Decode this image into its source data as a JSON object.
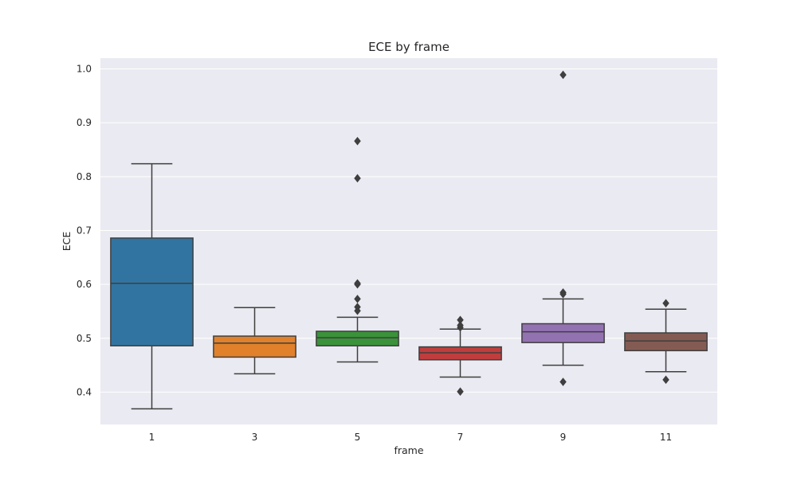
{
  "chart_data": {
    "type": "box",
    "title": "ECE by frame",
    "xlabel": "frame",
    "ylabel": "ECE",
    "ylim": [
      0.34,
      1.02
    ],
    "yticks": [
      0.4,
      0.5,
      0.6,
      0.7,
      0.8,
      0.9,
      1.0
    ],
    "ytick_labels": [
      "0.4",
      "0.5",
      "0.6",
      "0.7",
      "0.8",
      "0.9",
      "1.0"
    ],
    "grid": true,
    "categories": [
      "1",
      "3",
      "5",
      "7",
      "9",
      "11"
    ],
    "boxes": [
      {
        "category": "1",
        "color": "#3274a1",
        "whisker_low": 0.369,
        "q1": 0.486,
        "median": 0.602,
        "q3": 0.686,
        "whisker_high": 0.824,
        "outliers": []
      },
      {
        "category": "3",
        "color": "#e1812c",
        "whisker_low": 0.434,
        "q1": 0.465,
        "median": 0.491,
        "q3": 0.504,
        "whisker_high": 0.557,
        "outliers": []
      },
      {
        "category": "5",
        "color": "#3a923a",
        "whisker_low": 0.456,
        "q1": 0.486,
        "median": 0.501,
        "q3": 0.513,
        "whisker_high": 0.539,
        "outliers": [
          0.551,
          0.558,
          0.573,
          0.6,
          0.602,
          0.797,
          0.866
        ]
      },
      {
        "category": "7",
        "color": "#c03d3e",
        "whisker_low": 0.428,
        "q1": 0.46,
        "median": 0.473,
        "q3": 0.484,
        "whisker_high": 0.517,
        "outliers": [
          0.401,
          0.52,
          0.524,
          0.534
        ]
      },
      {
        "category": "9",
        "color": "#9372b2",
        "whisker_low": 0.45,
        "q1": 0.492,
        "median": 0.512,
        "q3": 0.527,
        "whisker_high": 0.573,
        "outliers": [
          0.419,
          0.582,
          0.585,
          0.989
        ]
      },
      {
        "category": "11",
        "color": "#845b53",
        "whisker_low": 0.438,
        "q1": 0.477,
        "median": 0.495,
        "q3": 0.51,
        "whisker_high": 0.554,
        "outliers": [
          0.423,
          0.565
        ]
      }
    ]
  }
}
